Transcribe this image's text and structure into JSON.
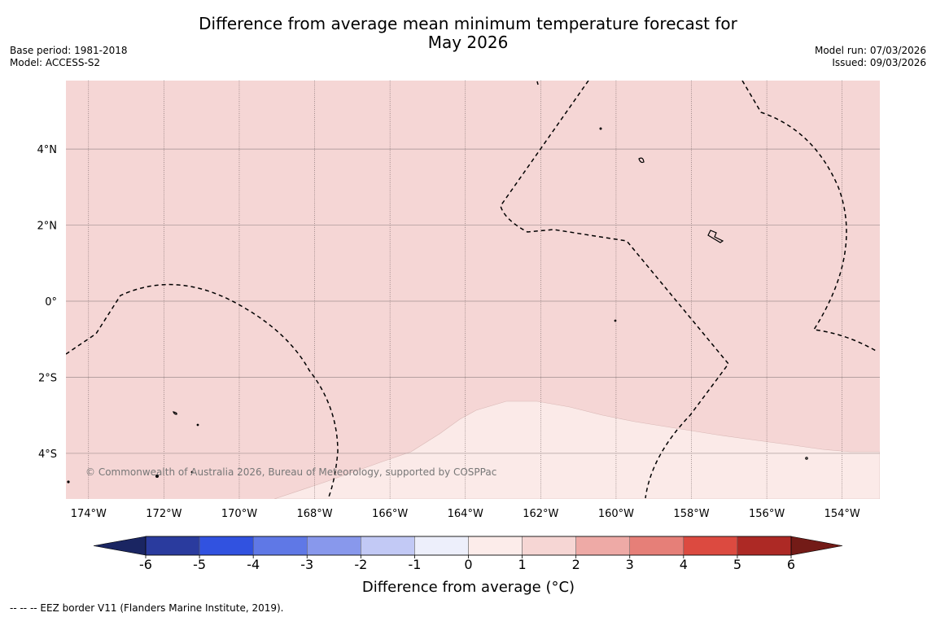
{
  "title_line1": "Difference from average mean minimum temperature forecast for",
  "title_line2": "May 2026",
  "base_period": "Base period: 1981-2018",
  "model": "Model: ACCESS-S2",
  "model_run": "Model run: 07/03/2026",
  "issued": "Issued: 09/03/2026",
  "copyright": "© Commonwealth of Australia 2026, Bureau of Meteorology, supported by COSPPac",
  "footnote": "--  --  -- EEZ border V11 (Flanders Marine Institute, 2019).",
  "map": {
    "lon_range": [
      -174.6,
      -153.0
    ],
    "lat_range": [
      -5.2,
      5.8
    ],
    "lon_ticks": [
      {
        "value": -174,
        "label": "174°W"
      },
      {
        "value": -172,
        "label": "172°W"
      },
      {
        "value": -170,
        "label": "170°W"
      },
      {
        "value": -168,
        "label": "168°W"
      },
      {
        "value": -166,
        "label": "166°W"
      },
      {
        "value": -164,
        "label": "164°W"
      },
      {
        "value": -162,
        "label": "162°W"
      },
      {
        "value": -160,
        "label": "160°W"
      },
      {
        "value": -158,
        "label": "158°W"
      },
      {
        "value": -156,
        "label": "156°W"
      },
      {
        "value": -154,
        "label": "154°W"
      }
    ],
    "lat_ticks": [
      {
        "value": 4,
        "label": "4°N"
      },
      {
        "value": 2,
        "label": "2°N"
      },
      {
        "value": 0,
        "label": "0°"
      },
      {
        "value": -2,
        "label": "2°S"
      },
      {
        "value": -4,
        "label": "4°S"
      }
    ],
    "dominant_anomaly_band": "1 to 2 °C",
    "southern_anomaly_band": "0 to 1 °C"
  },
  "colorbar": {
    "title": "Difference from average (°C)",
    "levels": [
      -6,
      -5,
      -4,
      -3,
      -2,
      -1,
      0,
      1,
      2,
      3,
      4,
      5,
      6
    ],
    "colors": [
      "#2a3b9e",
      "#3152e0",
      "#5f78e6",
      "#8898ec",
      "#c2c9f5",
      "#edeffb",
      "#fcecea",
      "#f6d6d4",
      "#eeaaa6",
      "#e67f78",
      "#dc4a40",
      "#ad2925"
    ],
    "extend_low_color": "#1a2562",
    "extend_high_color": "#731b17"
  },
  "colors": {
    "anomaly_1_2": "#f5d6d5",
    "anomaly_0_1": "#fbeae8",
    "grid": "#9a8a8a"
  }
}
